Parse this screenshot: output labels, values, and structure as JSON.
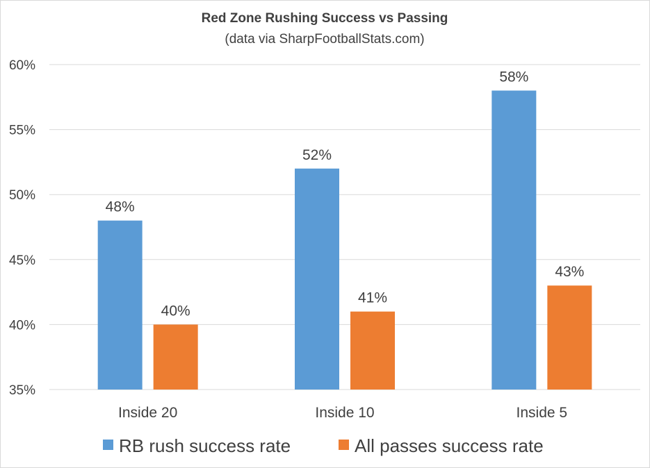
{
  "chart_data": {
    "type": "bar",
    "title": "Red Zone Rushing Success vs Passing",
    "subtitle": "(data via SharpFootballStats.com)",
    "categories": [
      "Inside 20",
      "Inside 10",
      "Inside 5"
    ],
    "series": [
      {
        "name": "RB rush success rate",
        "values": [
          48,
          52,
          58
        ],
        "labels": [
          "48%",
          "52%",
          "58%"
        ],
        "color": "#5b9bd5"
      },
      {
        "name": "All passes success rate",
        "values": [
          40,
          41,
          43
        ],
        "labels": [
          "40%",
          "41%",
          "43%"
        ],
        "color": "#ed7d31"
      }
    ],
    "ylim": [
      35,
      60
    ],
    "yticks": [
      35,
      40,
      45,
      50,
      55,
      60
    ],
    "ytick_labels": [
      "35%",
      "40%",
      "45%",
      "50%",
      "55%",
      "60%"
    ],
    "xlabel": "",
    "ylabel": "",
    "grid": true,
    "legend_position": "bottom"
  }
}
